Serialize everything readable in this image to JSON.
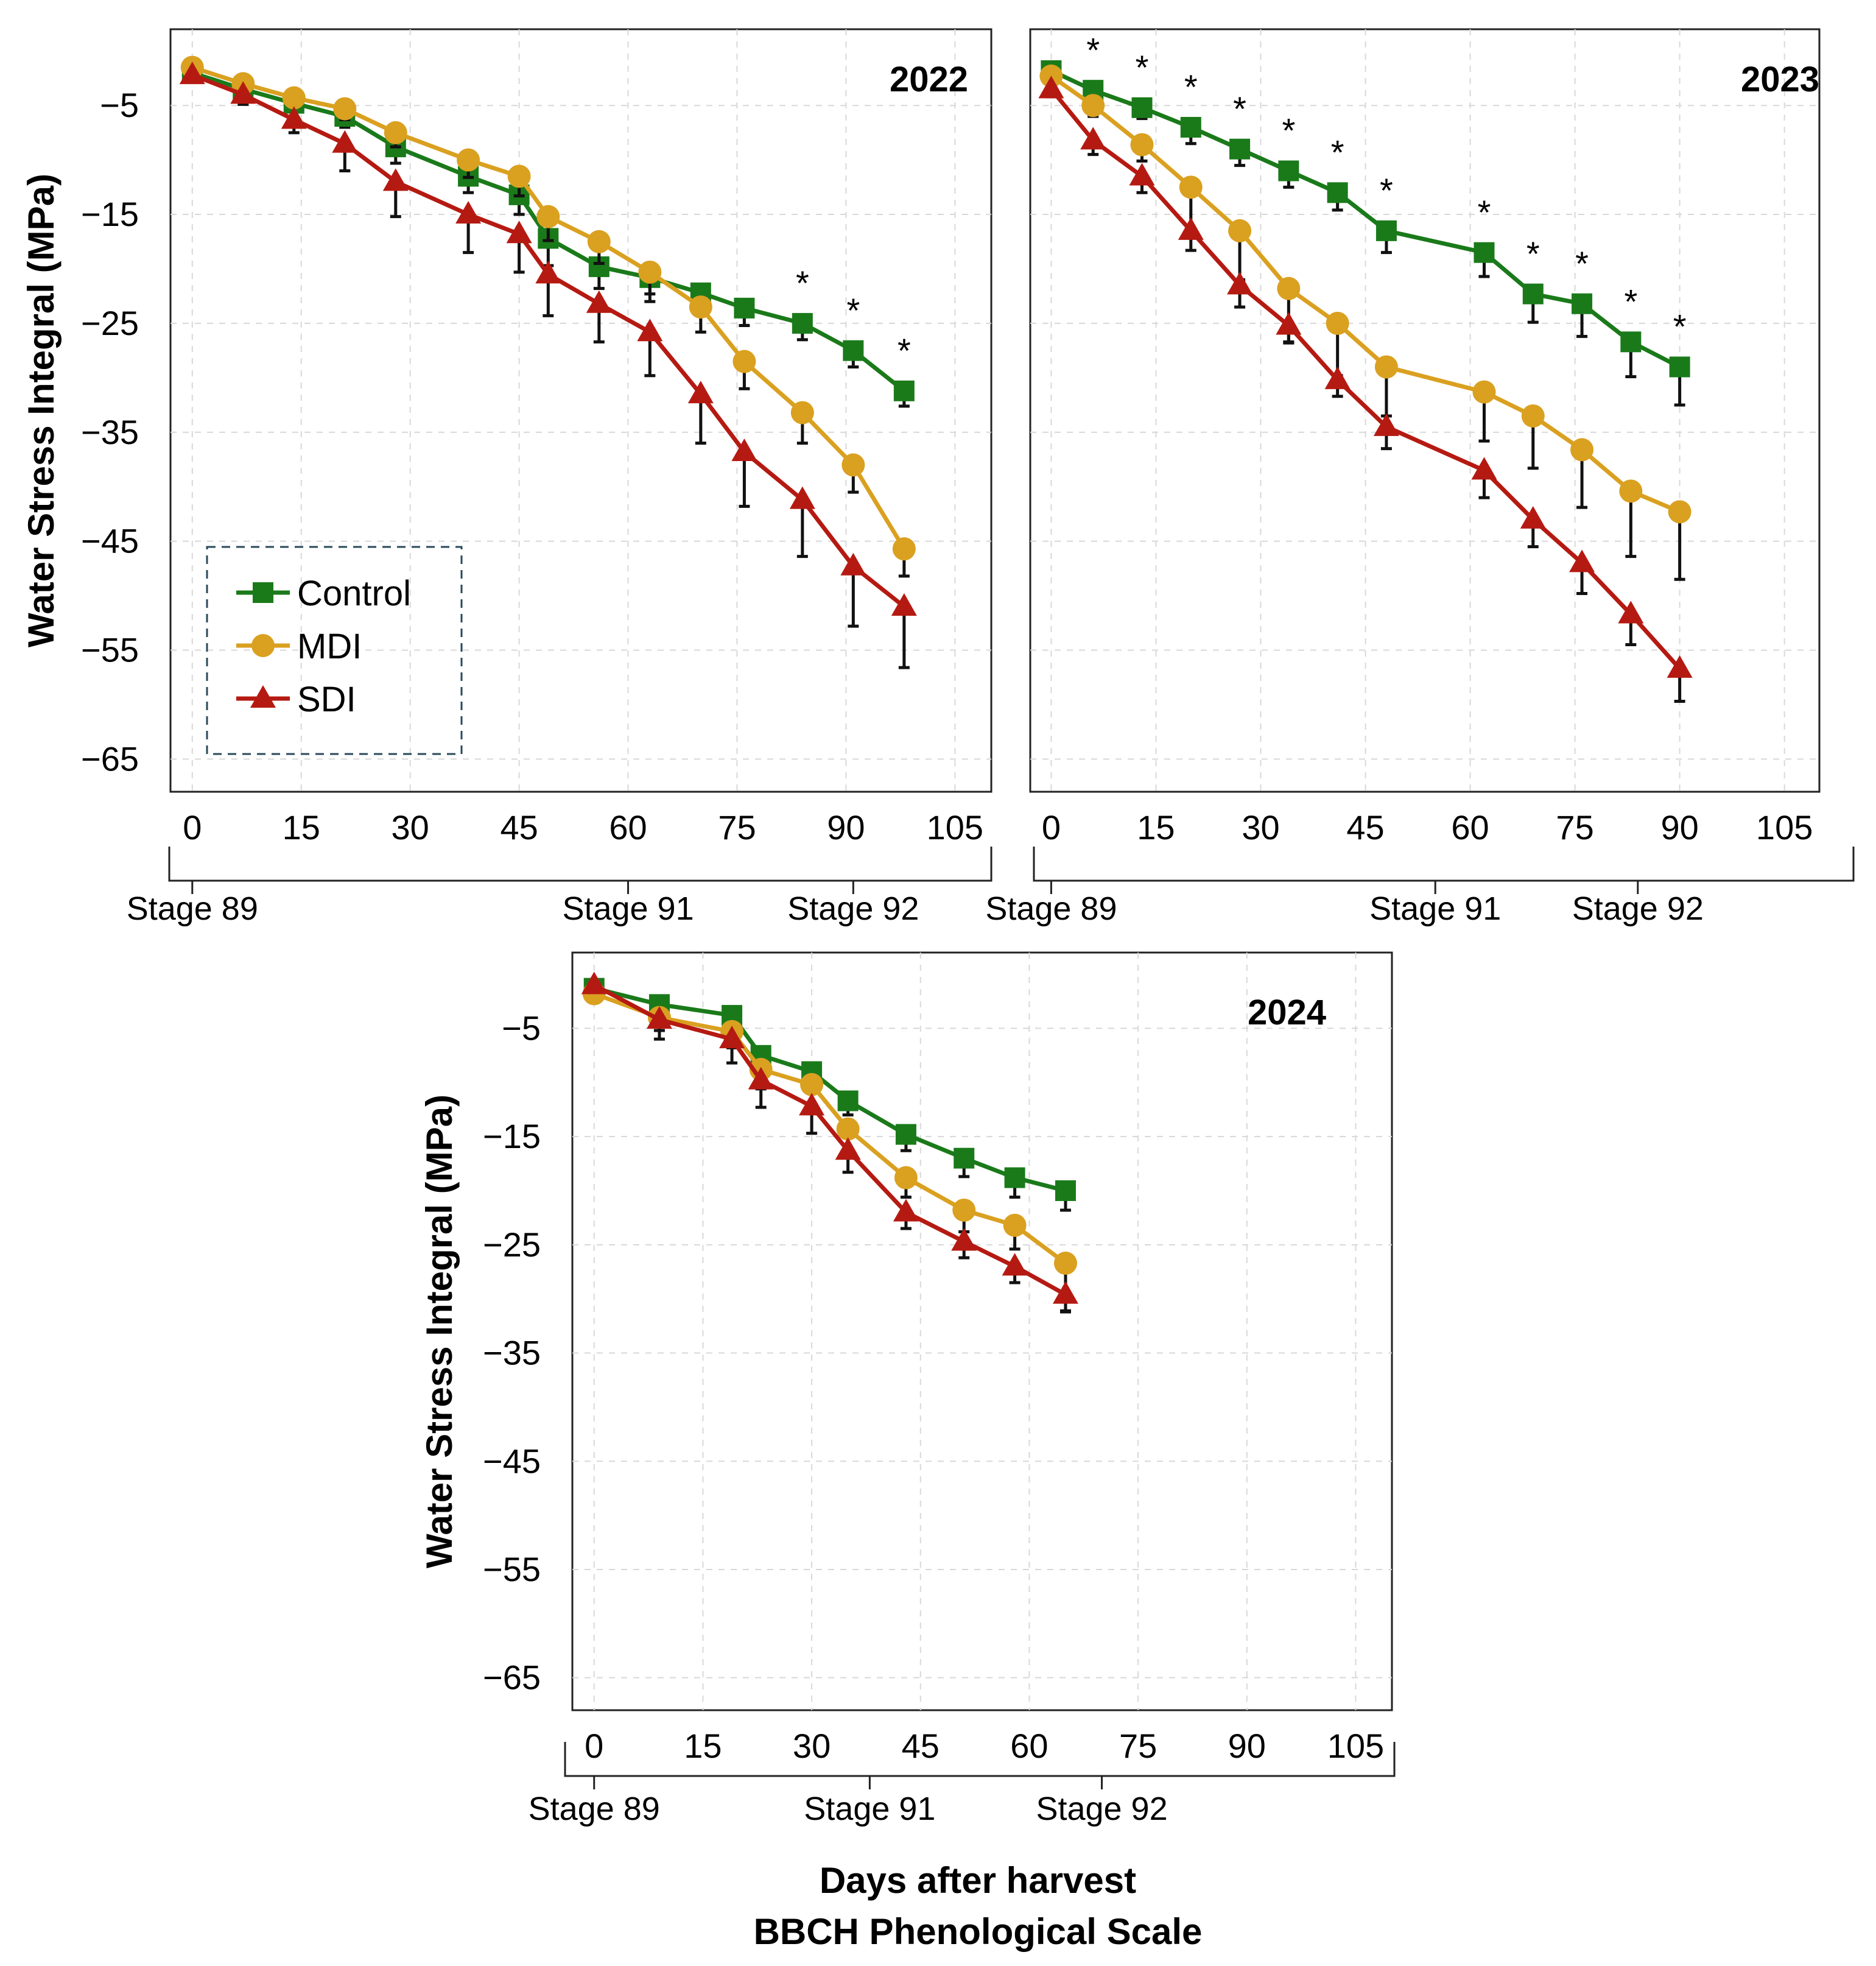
{
  "x_label_line1": "Days after harvest",
  "x_label_line2": "BBCH Phenological  Scale",
  "legend": {
    "entries": [
      {
        "name": "Control",
        "color": "#1a7a1a",
        "marker": "square"
      },
      {
        "name": "MDI",
        "color": "#daa020",
        "marker": "circle"
      },
      {
        "name": "SDI",
        "color": "#b51a12",
        "marker": "triangle"
      }
    ]
  },
  "chart_data": [
    {
      "type": "line",
      "title": "2022",
      "xlabel": "",
      "ylabel": "Water Stress Integral (MPa)",
      "xlim": [
        -3,
        110
      ],
      "ylim": [
        -68,
        2
      ],
      "xticks": [
        "0",
        "15",
        "30",
        "45",
        "60",
        "75",
        "90",
        "105"
      ],
      "xtick_values": [
        0,
        15,
        30,
        45,
        60,
        75,
        90,
        105
      ],
      "yticks": [
        "−5",
        "−15",
        "−25",
        "−35",
        "−45",
        "−55",
        "−65"
      ],
      "ytick_values": [
        -5,
        -15,
        -25,
        -35,
        -45,
        -55,
        -65
      ],
      "stages": [
        {
          "label": "Stage 89",
          "x": 0
        },
        {
          "label": "Stage 91",
          "x": 60
        },
        {
          "label": "Stage 92",
          "x": 91
        }
      ],
      "grid": true,
      "legend_placement": "bottom-left",
      "series": [
        {
          "name": "Control",
          "x": [
            0,
            7,
            14,
            21,
            28,
            38,
            45,
            49,
            56,
            63,
            70,
            76,
            84,
            91,
            98
          ],
          "y": [
            -2,
            -3.5,
            -4.8,
            -6,
            -8.8,
            -11.5,
            -13.2,
            -17.2,
            -19.8,
            -20.8,
            -22.2,
            -23.6,
            -25,
            -27.5,
            -31.2
          ],
          "err": [
            0.5,
            0.6,
            0.7,
            1.0,
            1.5,
            1.5,
            1.8,
            2.5,
            2.0,
            2.2,
            1.8,
            1.6,
            1.5,
            1.5,
            1.4
          ]
        },
        {
          "name": "MDI",
          "x": [
            0,
            7,
            14,
            21,
            28,
            38,
            45,
            49,
            56,
            63,
            70,
            76,
            84,
            91,
            98
          ],
          "y": [
            -1.5,
            -3,
            -4.3,
            -5.3,
            -7.5,
            -10,
            -11.5,
            -15.2,
            -17.5,
            -20.3,
            -23.5,
            -28.5,
            -33.2,
            -38,
            -45.7
          ],
          "err": [
            0.5,
            0.6,
            0.7,
            1.0,
            1.3,
            1.6,
            1.8,
            2.2,
            2.0,
            2.0,
            2.3,
            2.5,
            2.8,
            2.5,
            2.5
          ]
        },
        {
          "name": "SDI",
          "x": [
            0,
            7,
            14,
            21,
            28,
            38,
            45,
            49,
            56,
            63,
            70,
            76,
            84,
            91,
            98
          ],
          "y": [
            -2.2,
            -4,
            -6.3,
            -8.5,
            -12,
            -15,
            -16.8,
            -20.5,
            -23.2,
            -25.8,
            -31.5,
            -36.8,
            -41.2,
            -47.3,
            -51
          ],
          "err": [
            0.6,
            0.9,
            1.2,
            2.5,
            3.2,
            3.5,
            3.5,
            3.8,
            3.5,
            4.0,
            4.5,
            5.0,
            5.2,
            5.5,
            5.6
          ]
        }
      ],
      "annotations": [
        {
          "text": "*",
          "x": 84
        },
        {
          "text": "*",
          "x": 91
        },
        {
          "text": "*",
          "x": 98
        }
      ]
    },
    {
      "type": "line",
      "title": "2023",
      "xlabel": "",
      "ylabel": "",
      "xlim": [
        -3,
        110
      ],
      "ylim": [
        -68,
        2
      ],
      "xticks": [
        "0",
        "15",
        "30",
        "45",
        "60",
        "75",
        "90",
        "105"
      ],
      "xtick_values": [
        0,
        15,
        30,
        45,
        60,
        75,
        90,
        105
      ],
      "yticks": [],
      "stages": [
        {
          "label": "Stage 89",
          "x": 0
        },
        {
          "label": "Stage 91",
          "x": 55
        },
        {
          "label": "Stage 92",
          "x": 84
        }
      ],
      "grid": true,
      "series": [
        {
          "name": "Control",
          "x": [
            0,
            6,
            13,
            20,
            27,
            34,
            41,
            48,
            62,
            69,
            76,
            83,
            90
          ],
          "y": [
            -1.8,
            -3.6,
            -5.2,
            -7,
            -9,
            -11,
            -13,
            -16.5,
            -18.5,
            -22.3,
            -23.2,
            -26.7,
            -29
          ],
          "err": [
            0.5,
            0.8,
            1.0,
            1.5,
            1.5,
            1.5,
            1.6,
            2.0,
            2.2,
            2.6,
            3.0,
            3.2,
            3.5
          ]
        },
        {
          "name": "MDI",
          "x": [
            0,
            6,
            13,
            20,
            27,
            34,
            41,
            48,
            62,
            69,
            76,
            83,
            90
          ],
          "y": [
            -2.3,
            -5,
            -8.6,
            -12.5,
            -16.5,
            -21.8,
            -25,
            -29,
            -31.3,
            -33.5,
            -36.6,
            -40.4,
            -42.3
          ],
          "err": [
            0.6,
            1.0,
            1.5,
            4.0,
            4.5,
            5.0,
            4.8,
            4.5,
            4.5,
            4.8,
            5.3,
            6.0,
            6.2
          ]
        },
        {
          "name": "SDI",
          "x": [
            0,
            6,
            13,
            20,
            27,
            34,
            41,
            48,
            62,
            69,
            76,
            83,
            90
          ],
          "y": [
            -3.5,
            -8.2,
            -11.5,
            -16.5,
            -21.5,
            -25.2,
            -30.2,
            -34.5,
            -38.5,
            -43,
            -47,
            -51.7,
            -56.7
          ],
          "err": [
            0.7,
            1.3,
            1.5,
            1.8,
            2.0,
            1.5,
            1.5,
            2.0,
            2.5,
            2.5,
            2.8,
            2.8,
            3.0
          ]
        }
      ],
      "annotations": [
        {
          "text": "*",
          "x": 6
        },
        {
          "text": "*",
          "x": 13
        },
        {
          "text": "*",
          "x": 20
        },
        {
          "text": "*",
          "x": 27
        },
        {
          "text": "*",
          "x": 34
        },
        {
          "text": "*",
          "x": 41
        },
        {
          "text": "*",
          "x": 48
        },
        {
          "text": "*",
          "x": 62
        },
        {
          "text": "*",
          "x": 69
        },
        {
          "text": "*",
          "x": 76
        },
        {
          "text": "*",
          "x": 83
        },
        {
          "text": "*",
          "x": 90
        }
      ]
    },
    {
      "type": "line",
      "title": "2024",
      "xlabel": "",
      "ylabel": "Water Stress Integral (MPa)",
      "xlim": [
        -3,
        110
      ],
      "ylim": [
        -68,
        2
      ],
      "xticks": [
        "0",
        "15",
        "30",
        "45",
        "60",
        "75",
        "90",
        "105"
      ],
      "xtick_values": [
        0,
        15,
        30,
        45,
        60,
        75,
        90,
        105
      ],
      "yticks": [
        "−5",
        "−15",
        "−25",
        "−35",
        "−45",
        "−55",
        "−65"
      ],
      "ytick_values": [
        -5,
        -15,
        -25,
        -35,
        -45,
        -55,
        -65
      ],
      "stages": [
        {
          "label": "Stage 89",
          "x": 0
        },
        {
          "label": "Stage 91",
          "x": 38
        },
        {
          "label": "Stage 92",
          "x": 70
        }
      ],
      "grid": true,
      "series": [
        {
          "name": "Control",
          "x": [
            0,
            9,
            19,
            23,
            30,
            35,
            43,
            51,
            58,
            65
          ],
          "y": [
            -1.3,
            -2.8,
            -3.8,
            -7.5,
            -9,
            -11.7,
            -14.8,
            -17,
            -18.8,
            -20
          ],
          "err": [
            0.4,
            0.5,
            0.7,
            1.0,
            1.2,
            1.3,
            1.5,
            1.7,
            1.8,
            1.8
          ]
        },
        {
          "name": "MDI",
          "x": [
            0,
            9,
            19,
            23,
            30,
            35,
            43,
            51,
            58,
            65
          ],
          "y": [
            -1.8,
            -4,
            -5.3,
            -8.8,
            -10.2,
            -14.3,
            -18.8,
            -21.8,
            -23.2,
            -26.7
          ],
          "err": [
            0.5,
            1.2,
            1.5,
            1.8,
            2.0,
            1.8,
            1.8,
            2.0,
            2.2,
            4.5
          ]
        },
        {
          "name": "SDI",
          "x": [
            0,
            9,
            19,
            23,
            30,
            35,
            43,
            51,
            58,
            65
          ],
          "y": [
            -1,
            -4.2,
            -6,
            -9.8,
            -12.2,
            -16.3,
            -22,
            -24.7,
            -27,
            -29.6
          ],
          "err": [
            0.4,
            1.8,
            2.2,
            2.5,
            2.5,
            2.0,
            1.5,
            1.5,
            1.5,
            1.5
          ]
        }
      ],
      "annotations": []
    }
  ]
}
